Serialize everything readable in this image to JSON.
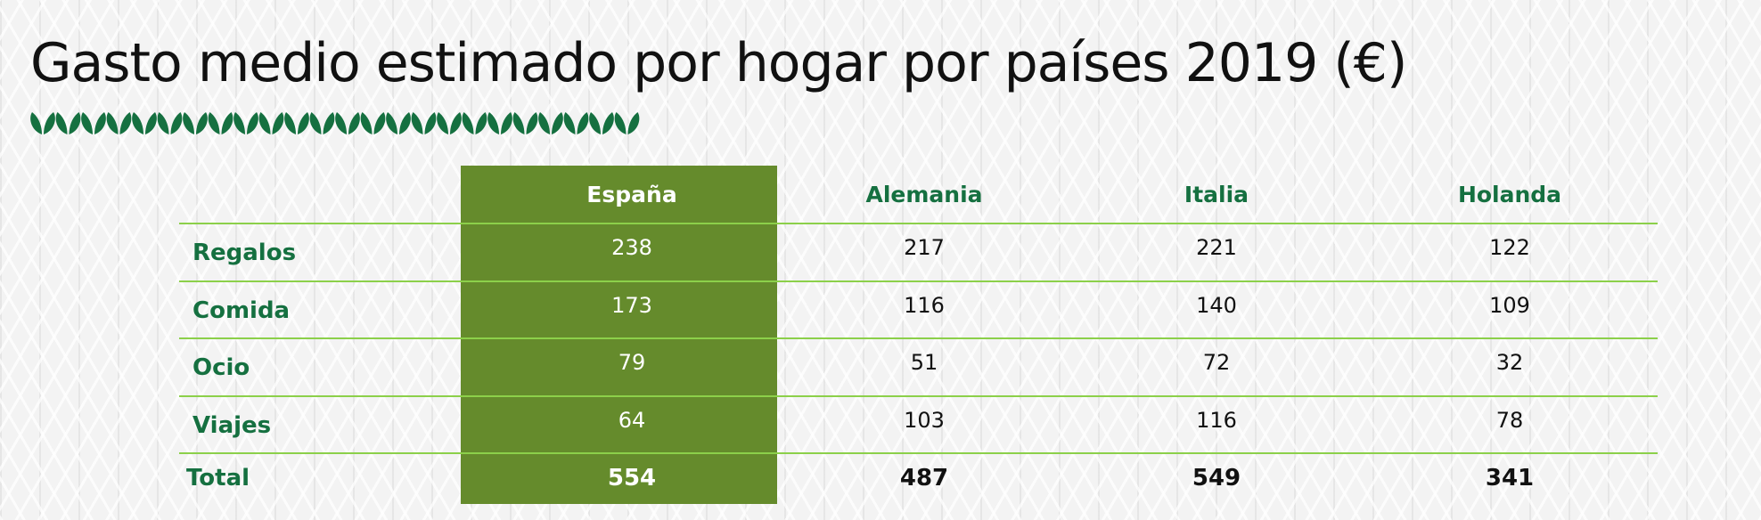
{
  "chart_data": {
    "type": "table",
    "title": "Gasto medio estimado por hogar por países 2019 (€)",
    "columns": [
      "España",
      "Alemania",
      "Italia",
      "Holanda"
    ],
    "highlight_column": "España",
    "rows": [
      {
        "label": "Regalos",
        "values": [
          "238",
          "217",
          "221",
          "122"
        ]
      },
      {
        "label": "Comida",
        "values": [
          "173",
          "116",
          "140",
          "109"
        ]
      },
      {
        "label": "Ocio",
        "values": [
          "79",
          "51",
          "72",
          "32"
        ]
      },
      {
        "label": "Viajes",
        "values": [
          "64",
          "103",
          "116",
          "78"
        ]
      },
      {
        "label": "Total",
        "values": [
          "554",
          "487",
          "549",
          "341"
        ],
        "bold": true
      }
    ]
  },
  "colors": {
    "highlight_fill": "#658b2c",
    "header_text": "#157040",
    "row_divider": "#8cd04a",
    "leaf": "#157040"
  },
  "decoration_icon": "leaf-garland-icon"
}
